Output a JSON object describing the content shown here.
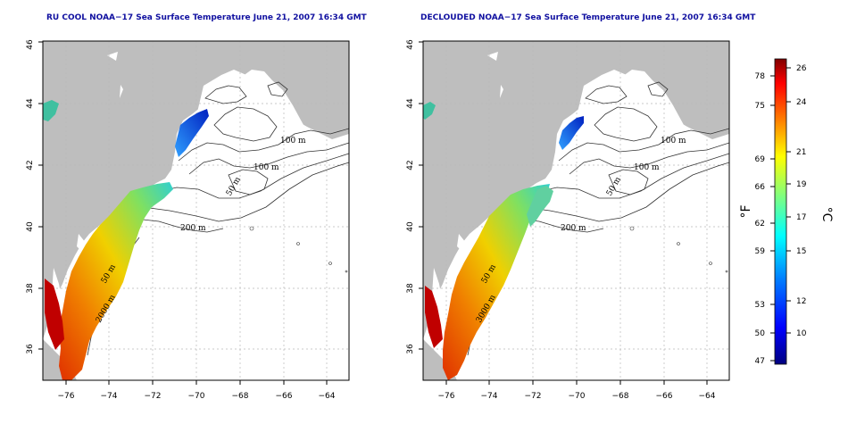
{
  "panels": [
    {
      "title": "RU COOL NOAA−17 Sea Surface Temperature June 21, 2007 16:34 GMT",
      "contour_labels": [
        "100 m",
        "100 m",
        "50 m",
        "200 m",
        "50 m",
        "2000 m"
      ]
    },
    {
      "title": "DECLOUDED NOAA−17 Sea Surface Temperature June 21, 2007 16:34 GMT",
      "contour_labels": [
        "100 m",
        "100 m",
        "50 m",
        "200 m",
        "50 m",
        "3000 m"
      ]
    }
  ],
  "axes": {
    "x_ticks": [
      "−76",
      "−74",
      "−72",
      "−70",
      "−68",
      "−66",
      "−64"
    ],
    "y_ticks": [
      "36",
      "38",
      "40",
      "42",
      "44",
      "46"
    ]
  },
  "colorbar": {
    "f_ticks": [
      "78",
      "75",
      "69",
      "66",
      "62",
      "59",
      "53",
      "50",
      "47"
    ],
    "c_ticks": [
      "26",
      "24",
      "21",
      "19",
      "17",
      "15",
      "12",
      "10"
    ],
    "f_unit": "°F",
    "c_unit": "°C",
    "colors": [
      "#00007f",
      "#0000ff",
      "#007fff",
      "#00ffff",
      "#7fff7f",
      "#ffff00",
      "#ff7f00",
      "#ff0000",
      "#7f0000"
    ]
  },
  "colors": {
    "land": "#bebebe",
    "title": "#1010a0",
    "grid": "#b0b0b0",
    "contour": "#333333"
  }
}
